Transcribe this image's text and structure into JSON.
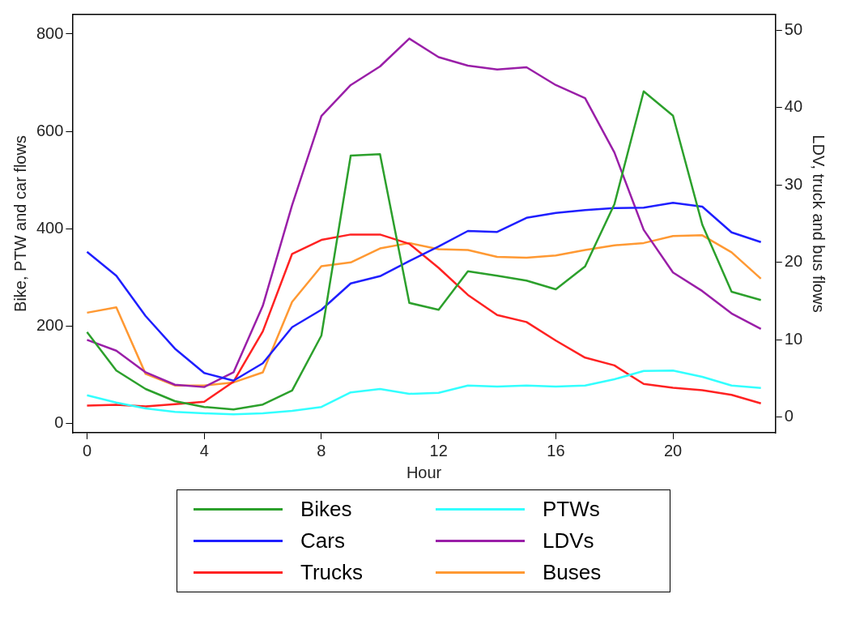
{
  "chart_data": {
    "type": "line",
    "xlabel": "Hour",
    "ylabel": "Bike, PTW and car flows",
    "y2label": "LDV, truck and bus flows",
    "x": [
      0,
      1,
      2,
      3,
      4,
      5,
      6,
      7,
      8,
      9,
      10,
      11,
      12,
      13,
      14,
      15,
      16,
      17,
      18,
      19,
      20,
      21,
      22,
      23
    ],
    "xlim": [
      -0.5,
      23.5
    ],
    "xticks": [
      0,
      4,
      8,
      12,
      16,
      20
    ],
    "ylim": [
      -20,
      840
    ],
    "yticks": [
      0,
      200,
      400,
      600,
      800
    ],
    "y2lim": [
      -2,
      52
    ],
    "y2ticks": [
      0,
      10,
      20,
      30,
      40,
      50
    ],
    "legend": "bottom",
    "grid": false,
    "marker": "none",
    "line_style": "solid",
    "series": [
      {
        "name": "Bikes",
        "color": "#2ca02c",
        "values": [
          187,
          108,
          70,
          45,
          33,
          28,
          38,
          67,
          180,
          550,
          553,
          247,
          233,
          312,
          303,
          293,
          275,
          322,
          450,
          682,
          632,
          408,
          270,
          253
        ]
      },
      {
        "name": "PTWs",
        "color": "#33ffff",
        "values": [
          57,
          42,
          30,
          23,
          20,
          18,
          20,
          25,
          33,
          63,
          70,
          60,
          62,
          77,
          75,
          77,
          75,
          77,
          90,
          107,
          108,
          95,
          77,
          72
        ]
      },
      {
        "name": "Cars",
        "color": "#1f1fff",
        "values": [
          352,
          303,
          220,
          153,
          103,
          87,
          123,
          197,
          233,
          287,
          302,
          333,
          363,
          395,
          393,
          422,
          432,
          438,
          442,
          443,
          453,
          445,
          392,
          372
        ]
      },
      {
        "name": "LDVs",
        "color": "#9a1fa8",
        "axis": "y2",
        "values": [
          10,
          8.6,
          5.8,
          4.2,
          3.9,
          5.8,
          14.4,
          27.4,
          38.9,
          42.9,
          45.3,
          48.9,
          46.5,
          45.4,
          44.9,
          45.2,
          42.9,
          41.2,
          34.2,
          24.2,
          18.7,
          16.3,
          13.4,
          11.4
        ]
      },
      {
        "name": "Trucks",
        "color": "#ff2222",
        "axis": "y2",
        "values": [
          1.5,
          1.6,
          1.4,
          1.7,
          2,
          4.6,
          11.1,
          21.1,
          22.9,
          23.6,
          23.6,
          22.4,
          19.3,
          15.8,
          13.2,
          12.3,
          9.9,
          7.7,
          6.7,
          4.3,
          3.8,
          3.5,
          2.9,
          1.8
        ]
      },
      {
        "name": "Buses",
        "color": "#ff9933",
        "axis": "y2",
        "values": [
          13.5,
          14.2,
          5.6,
          4.1,
          4.1,
          4.5,
          5.8,
          14.9,
          19.5,
          20,
          21.8,
          22.5,
          21.7,
          21.6,
          20.7,
          20.6,
          20.9,
          21.6,
          22.2,
          22.5,
          23.4,
          23.5,
          21.3,
          17.9
        ]
      }
    ]
  }
}
